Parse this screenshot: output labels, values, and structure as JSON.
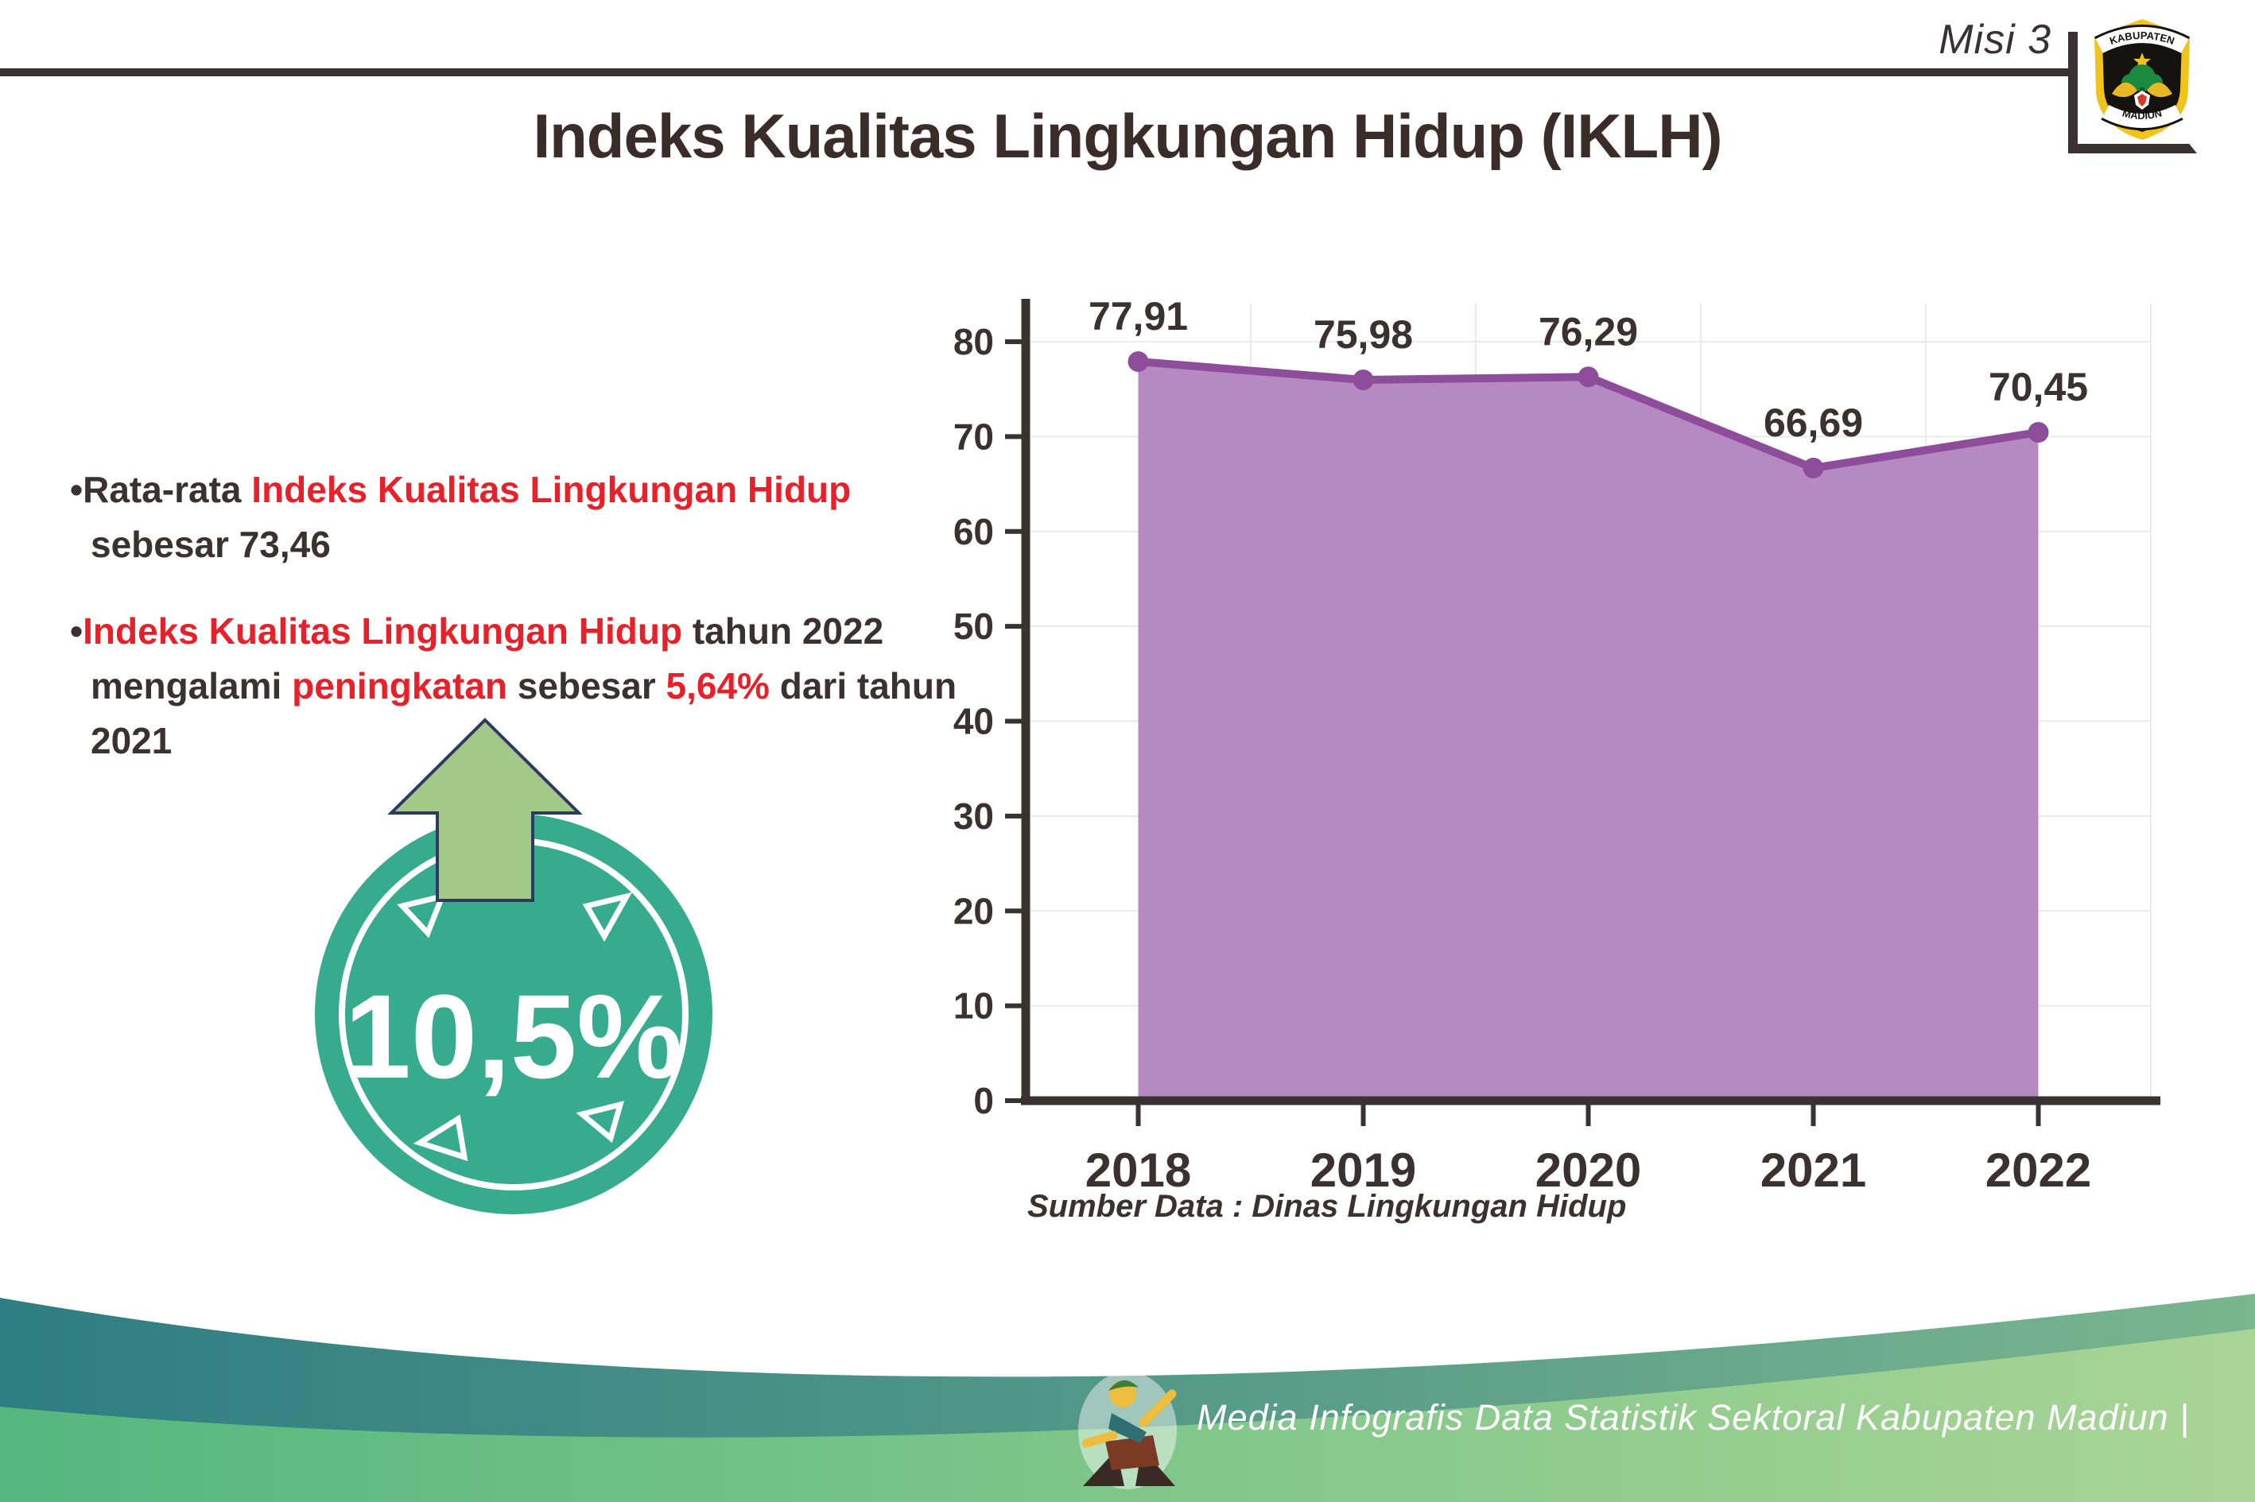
{
  "header": {
    "misi_label": "Misi 3",
    "logo": {
      "top_text": "KABUPATEN",
      "bottom_text": "MADIUN"
    }
  },
  "title": "Indeks Kualitas Lingkungan Hidup (IKLH)",
  "bullets": [
    {
      "segments": [
        {
          "text": "•Rata-rata ",
          "color": "dark"
        },
        {
          "text": "Indeks Kualitas Lingkungan Hidup",
          "color": "red"
        },
        {
          "text": " sebesar 73,46",
          "color": "dark"
        }
      ]
    },
    {
      "segments": [
        {
          "text": "•",
          "color": "dark"
        },
        {
          "text": "Indeks Kualitas Lingkungan Hidup",
          "color": "red"
        },
        {
          "text": " tahun 2022 mengalami ",
          "color": "dark"
        },
        {
          "text": "peningkatan",
          "color": "red"
        },
        {
          "text": " sebesar ",
          "color": "dark"
        },
        {
          "text": "5,64%",
          "color": "red"
        },
        {
          "text": " dari tahun 2021",
          "color": "dark"
        }
      ]
    }
  ],
  "badge": {
    "value": "10,5%"
  },
  "chart_data": {
    "type": "area",
    "categories": [
      "2018",
      "2019",
      "2020",
      "2021",
      "2022"
    ],
    "values": [
      77.91,
      75.98,
      76.29,
      66.69,
      70.45
    ],
    "value_labels": [
      "77,91",
      "75,98",
      "76,29",
      "66,69",
      "70,45"
    ],
    "title": "",
    "xlabel": "",
    "ylabel": "",
    "ylim": [
      0,
      80
    ],
    "ytick_step": 10,
    "grid": true,
    "legend": "none",
    "line_color": "#8e4d9b",
    "fill_color": "#b589c1",
    "axis_color": "#3a3132",
    "grid_color": "#e9e9e9",
    "label_color": "#3b3130",
    "source_label": "Sumber Data : Dinas Lingkungan Hidup"
  },
  "footer": {
    "text": "Media Infografis Data Statistik Sektoral Kabupaten Madiun |"
  },
  "colors": {
    "accent_red": "#e6212a",
    "dark_text": "#3b3130",
    "badge_teal": "#36ab8d",
    "arrow_green": "#a2c987",
    "arrow_outline": "#2e3a63",
    "footer_teal_left": "#2e7d82",
    "footer_teal_right": "#79b58e",
    "footer_green_left": "#55b77e",
    "footer_green_right": "#a9d595",
    "logo_gold": "#f2c319"
  }
}
